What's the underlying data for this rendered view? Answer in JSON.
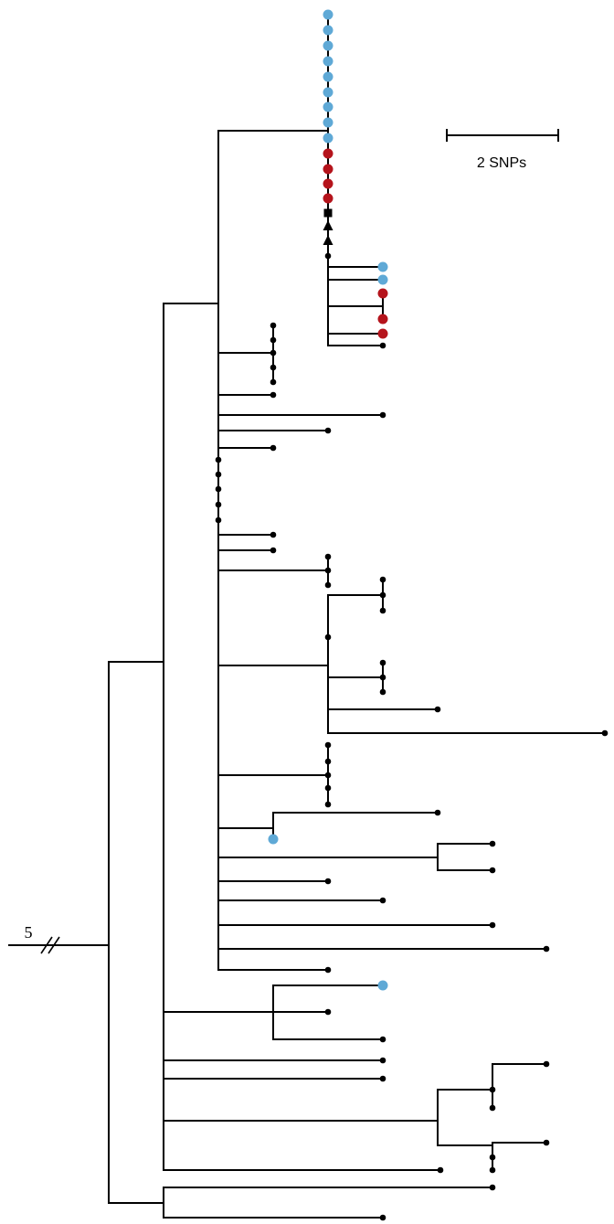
{
  "scale_bar": {
    "label": "2 SNPs",
    "length_snps": 2
  },
  "root_branch": {
    "label": "5",
    "break_mark": "double-slash"
  },
  "colors": {
    "branch": "#000000",
    "node_black": "#000000",
    "node_blue": "#5fa9d6",
    "node_red": "#b5141c"
  },
  "legend_shapes": [
    "circle",
    "square",
    "triangle"
  ]
}
